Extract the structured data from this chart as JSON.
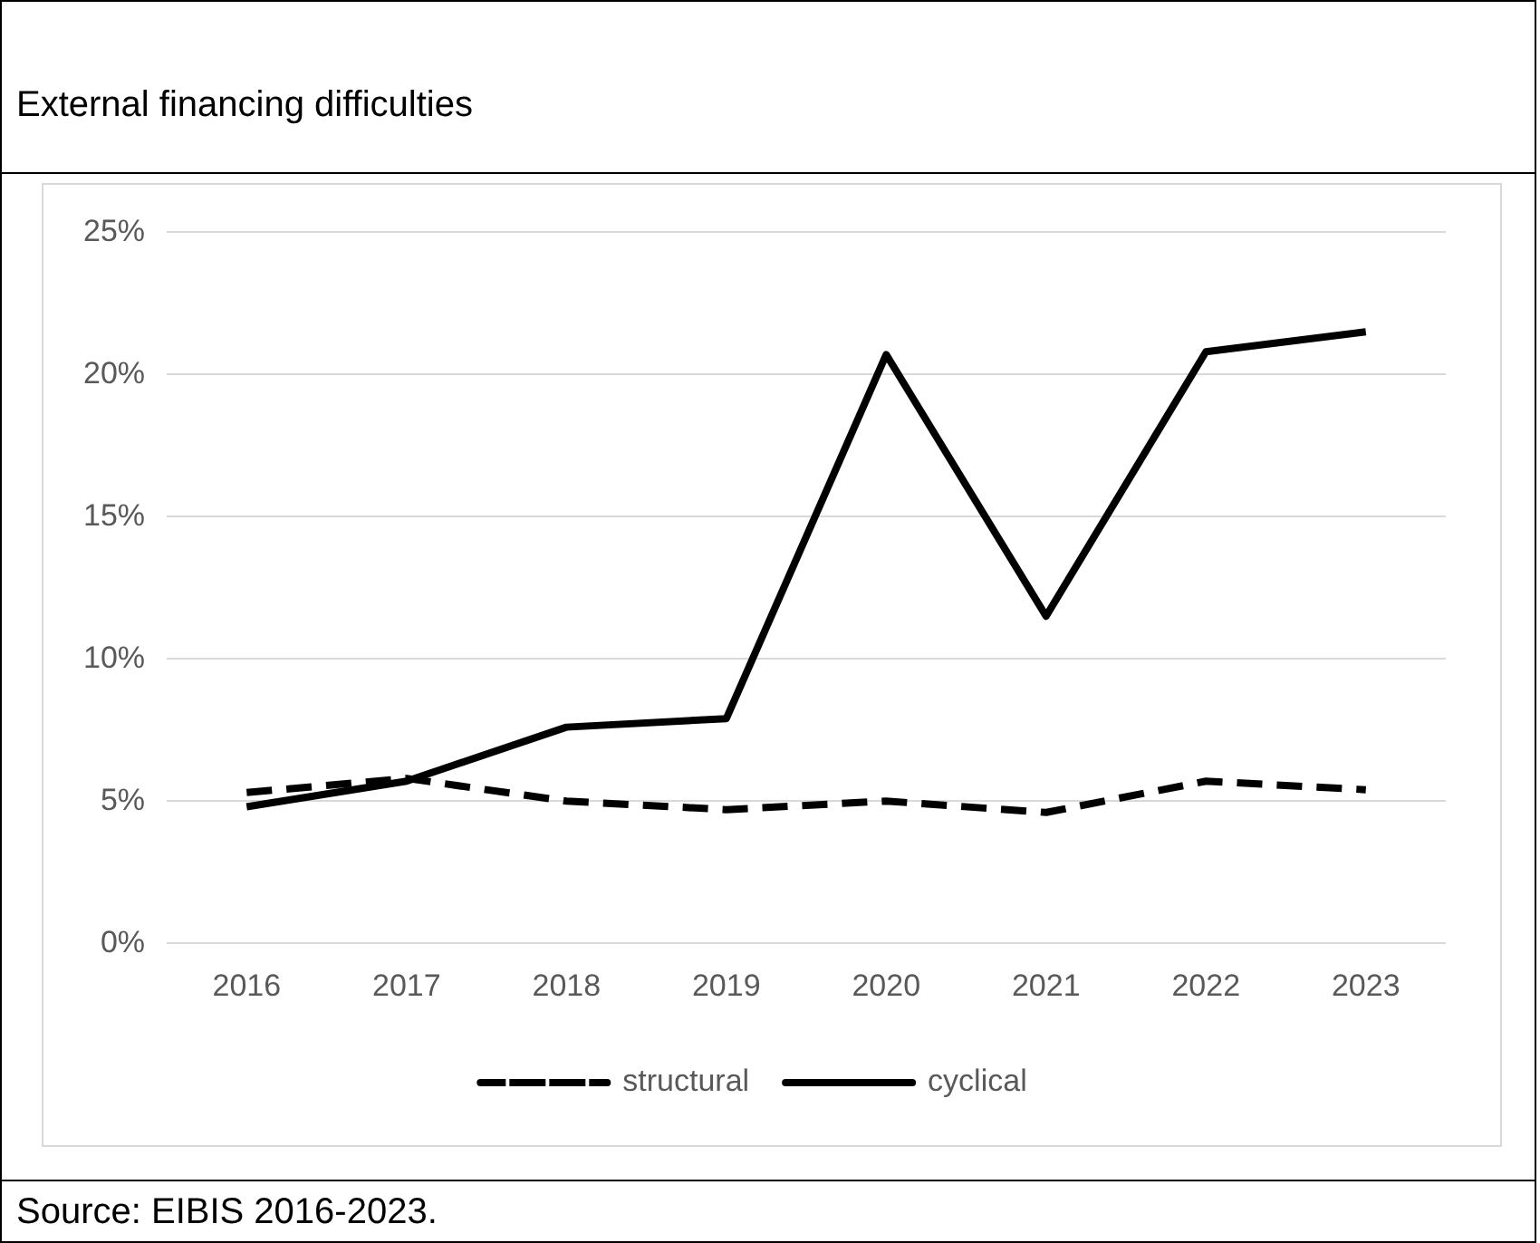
{
  "chart_data": {
    "type": "line",
    "title": "External financing difficulties",
    "categories": [
      "2016",
      "2017",
      "2018",
      "2019",
      "2020",
      "2021",
      "2022",
      "2023"
    ],
    "series": [
      {
        "name": "structural",
        "color": "#000000",
        "line_style": "dashed",
        "values": [
          5.3,
          5.8,
          5.0,
          4.7,
          5.0,
          4.6,
          5.7,
          5.4
        ]
      },
      {
        "name": "cyclical",
        "color": "#000000",
        "line_style": "solid",
        "values": [
          4.8,
          5.7,
          7.6,
          7.9,
          20.7,
          11.5,
          20.8,
          21.5
        ]
      }
    ],
    "ylim": [
      0,
      25
    ],
    "yticks": [
      {
        "value": 0,
        "label": "0%"
      },
      {
        "value": 5,
        "label": "5%"
      },
      {
        "value": 10,
        "label": "10%"
      },
      {
        "value": 15,
        "label": "15%"
      },
      {
        "value": 20,
        "label": "20%"
      },
      {
        "value": 25,
        "label": "25%"
      }
    ],
    "grid": "y",
    "legend": "bottom",
    "marker": "none",
    "annotations": [
      "Source: EIBIS 2016-2023."
    ]
  }
}
